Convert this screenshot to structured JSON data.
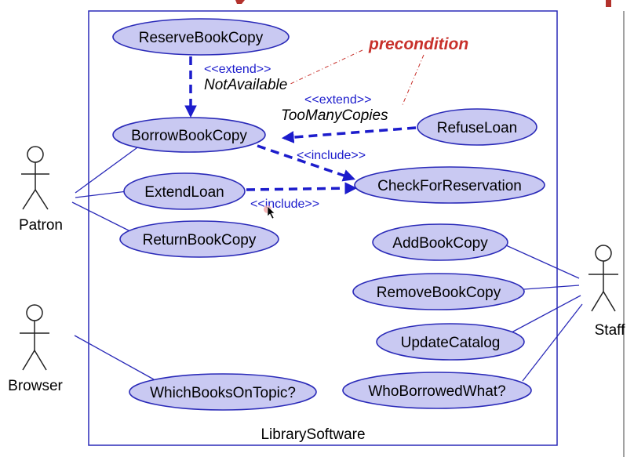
{
  "diagram": {
    "system_label": "LibrarySoftware",
    "actors": {
      "patron": "Patron",
      "browser": "Browser",
      "staff": "Staff"
    },
    "use_cases": {
      "reserve": "ReserveBookCopy",
      "borrow": "BorrowBookCopy",
      "refuse": "RefuseLoan",
      "extend": "ExtendLoan",
      "check": "CheckForReservation",
      "return": "ReturnBookCopy",
      "add": "AddBookCopy",
      "remove": "RemoveBookCopy",
      "update": "UpdateCatalog",
      "which": "WhichBooksOnTopic?",
      "who": "WhoBorrowedWhat?"
    },
    "relationships": {
      "extend_1_stereotype": "<<extend>>",
      "extend_1_condition": "NotAvailable",
      "extend_2_stereotype": "<<extend>>",
      "extend_2_condition": "TooManyCopies",
      "include_1_stereotype": "<<include>>",
      "include_2_stereotype": "<<include>>"
    },
    "note": "precondition",
    "colors": {
      "use_case_fill": "#c9c9f2",
      "use_case_stroke": "#2a2ab8",
      "dependency": "#1c1ccc",
      "note": "#c8312b"
    }
  }
}
